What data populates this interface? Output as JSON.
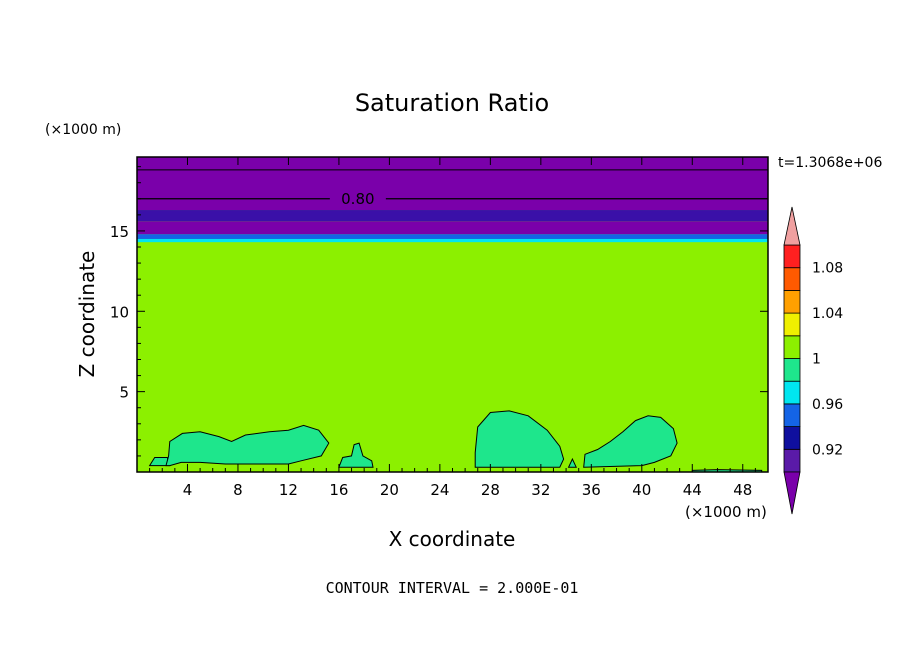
{
  "chart_data": {
    "type": "heatmap",
    "title": "Saturation Ratio",
    "xlabel": "X coordinate",
    "ylabel": "Z coordinate",
    "x_unit_label": "(×1000 m)",
    "y_unit_label": "(×1000 m)",
    "xlim": [
      0,
      50
    ],
    "ylim": [
      0,
      19.6
    ],
    "xticks": [
      "4",
      "8",
      "12",
      "16",
      "20",
      "24",
      "28",
      "32",
      "36",
      "40",
      "44",
      "48"
    ],
    "xtick_values": [
      4,
      8,
      12,
      16,
      20,
      24,
      28,
      32,
      36,
      40,
      44,
      48
    ],
    "yticks": [
      "5",
      "10",
      "15"
    ],
    "ytick_values": [
      5,
      10,
      15
    ],
    "time_label": "t=1.3068e+06",
    "contour_label": "0.80",
    "footer": "CONTOUR INTERVAL = 2.000E-01",
    "colorbar": {
      "labels": [
        "1.08",
        "1.04",
        "1",
        "0.96",
        "0.92"
      ],
      "label_values": [
        1.08,
        1.04,
        1.0,
        0.96,
        0.92
      ],
      "levels": [
        {
          "lo": 0.9,
          "hi": 0.92,
          "color": "#5a1aa8"
        },
        {
          "lo": 0.92,
          "hi": 0.94,
          "color": "#0f0f9e"
        },
        {
          "lo": 0.94,
          "hi": 0.96,
          "color": "#1464e6"
        },
        {
          "lo": 0.96,
          "hi": 0.98,
          "color": "#00e6f0"
        },
        {
          "lo": 0.98,
          "hi": 1.0,
          "color": "#1ee68c"
        },
        {
          "lo": 1.0,
          "hi": 1.02,
          "color": "#8cf000"
        },
        {
          "lo": 1.02,
          "hi": 1.04,
          "color": "#f0f000"
        },
        {
          "lo": 1.04,
          "hi": 1.06,
          "color": "#ffa000"
        },
        {
          "lo": 1.06,
          "hi": 1.08,
          "color": "#ff5a00"
        },
        {
          "lo": 1.08,
          "hi": 1.1,
          "color": "#ff2020"
        }
      ],
      "over_color": "#f0a0a0",
      "under_color": "#7a00aa"
    },
    "bands": [
      {
        "z0": 14.3,
        "z1": 14.5,
        "color": "#00e6f0"
      },
      {
        "z0": 14.5,
        "z1": 14.8,
        "color": "#1464e6"
      },
      {
        "z0": 14.8,
        "z1": 15.6,
        "color": "#7a00aa"
      },
      {
        "z0": 15.6,
        "z1": 16.3,
        "color": "#3a10a8"
      },
      {
        "z0": 16.3,
        "z1": 19.6,
        "color": "#7a00aa"
      }
    ],
    "background_color": "#8cf000",
    "contour_lines_z": [
      17.0,
      18.8
    ],
    "cloud_color": "#1ee68c",
    "clouds": [
      [
        [
          1.0,
          0.4
        ],
        [
          1.4,
          0.9
        ],
        [
          2.4,
          0.9
        ],
        [
          2.6,
          0.4
        ]
      ],
      [
        [
          2.3,
          0.4
        ],
        [
          2.5,
          1.0
        ],
        [
          2.6,
          1.9
        ],
        [
          3.6,
          2.4
        ],
        [
          5.0,
          2.5
        ],
        [
          6.5,
          2.2
        ],
        [
          7.5,
          1.9
        ],
        [
          8.6,
          2.3
        ],
        [
          10.5,
          2.5
        ],
        [
          12.0,
          2.6
        ],
        [
          13.2,
          2.9
        ],
        [
          14.4,
          2.6
        ],
        [
          15.2,
          1.8
        ],
        [
          14.6,
          1.0
        ],
        [
          13.0,
          0.7
        ],
        [
          12.0,
          0.5
        ],
        [
          10.0,
          0.5
        ],
        [
          7.0,
          0.5
        ],
        [
          5.0,
          0.6
        ],
        [
          3.5,
          0.6
        ],
        [
          2.6,
          0.4
        ]
      ],
      [
        [
          16.0,
          0.3
        ],
        [
          16.3,
          0.9
        ],
        [
          17.0,
          1.0
        ],
        [
          17.2,
          1.7
        ],
        [
          17.6,
          1.8
        ],
        [
          17.9,
          1.0
        ],
        [
          18.6,
          0.7
        ],
        [
          18.7,
          0.3
        ]
      ],
      [
        [
          26.8,
          0.3
        ],
        [
          26.8,
          1.2
        ],
        [
          27.0,
          2.8
        ],
        [
          28.0,
          3.7
        ],
        [
          29.5,
          3.8
        ],
        [
          31.0,
          3.5
        ],
        [
          32.5,
          2.6
        ],
        [
          33.5,
          1.6
        ],
        [
          33.8,
          0.8
        ],
        [
          33.5,
          0.3
        ]
      ],
      [
        [
          35.4,
          0.3
        ],
        [
          35.5,
          1.1
        ],
        [
          36.5,
          1.4
        ],
        [
          37.5,
          1.9
        ],
        [
          38.5,
          2.5
        ],
        [
          39.5,
          3.2
        ],
        [
          40.5,
          3.5
        ],
        [
          41.5,
          3.4
        ],
        [
          42.5,
          2.7
        ],
        [
          42.8,
          1.8
        ],
        [
          42.3,
          1.0
        ],
        [
          41.0,
          0.6
        ],
        [
          40.0,
          0.4
        ]
      ],
      [
        [
          34.2,
          0.3
        ],
        [
          34.5,
          0.8
        ],
        [
          34.8,
          0.3
        ]
      ],
      [
        [
          44.0,
          0.1
        ],
        [
          46.0,
          0.15
        ],
        [
          49.5,
          0.1
        ],
        [
          49.5,
          0.0
        ],
        [
          44.0,
          0.0
        ]
      ]
    ]
  }
}
